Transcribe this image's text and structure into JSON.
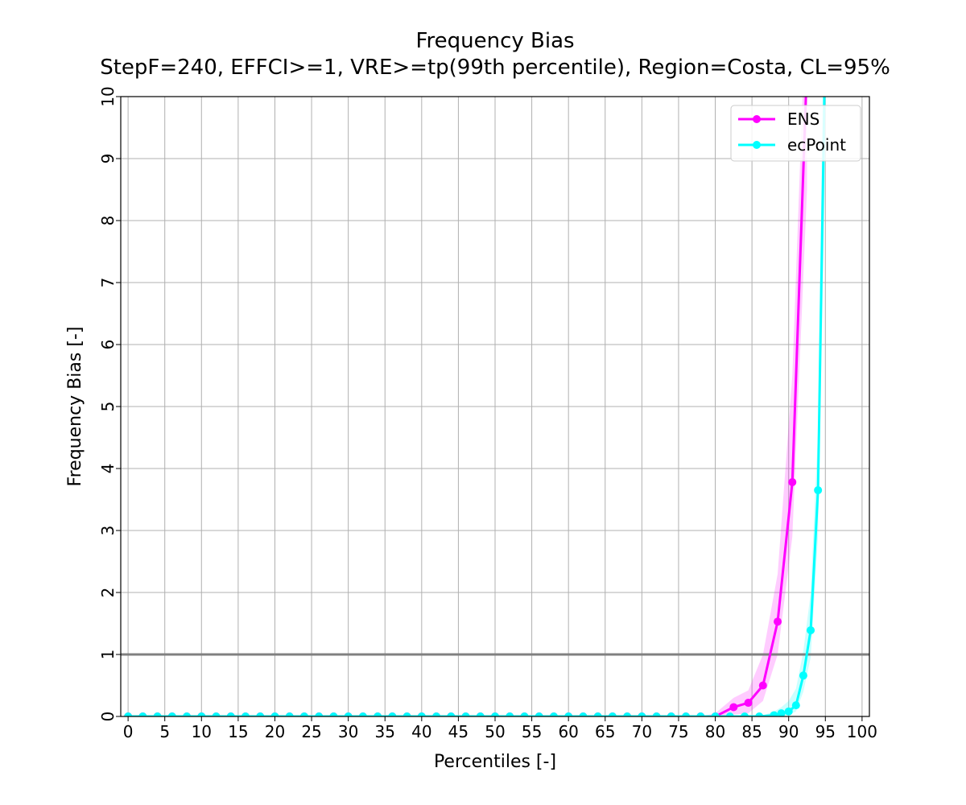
{
  "chart_data": {
    "type": "line",
    "title": "Frequency Bias",
    "subtitle": "StepF=240, EFFCI>=1, VRE>=tp(99th percentile), Region=Costa, CL=95%",
    "xlabel": "Percentiles [-]",
    "ylabel": "Frequency Bias [-]",
    "xlim": [
      -1,
      101
    ],
    "ylim": [
      0,
      10
    ],
    "xticks": [
      0,
      5,
      10,
      15,
      20,
      25,
      30,
      35,
      40,
      45,
      50,
      55,
      60,
      65,
      70,
      75,
      80,
      85,
      90,
      95,
      100
    ],
    "yticks": [
      0,
      1,
      2,
      3,
      4,
      5,
      6,
      7,
      8,
      9,
      10
    ],
    "grid": true,
    "legend_position": "top-right",
    "reference_line": {
      "y": 1,
      "color": "#808080"
    },
    "series": [
      {
        "name": "ENS",
        "color": "#ff00ff",
        "x": [
          0,
          2,
          4,
          6,
          8,
          10,
          12,
          14,
          16,
          18,
          20,
          22,
          24,
          26,
          28,
          30,
          32,
          34,
          36,
          38,
          40,
          42,
          44,
          46,
          48,
          50,
          52,
          54,
          56,
          58,
          60,
          62,
          64,
          66,
          68,
          70,
          72,
          74,
          76,
          78,
          80,
          82.5,
          84.5,
          86.5,
          88.5,
          90.5,
          92.5
        ],
        "y": [
          0,
          0,
          0,
          0,
          0,
          0,
          0,
          0,
          0,
          0,
          0,
          0,
          0,
          0,
          0,
          0,
          0,
          0,
          0,
          0,
          0,
          0,
          0,
          0,
          0,
          0,
          0,
          0,
          0,
          0,
          0,
          0,
          0,
          0,
          0,
          0,
          0,
          0,
          0,
          0,
          0,
          0.15,
          0.22,
          0.5,
          1.53,
          3.78,
          10.5
        ],
        "ci_low": [
          0,
          0,
          0,
          0,
          0,
          0,
          0,
          0,
          0,
          0,
          0,
          0,
          0,
          0,
          0,
          0,
          0,
          0,
          0,
          0,
          0,
          0,
          0,
          0,
          0,
          0,
          0,
          0,
          0,
          0,
          0,
          0,
          0,
          0,
          0,
          0,
          0,
          0,
          0,
          0,
          0,
          0.03,
          0.05,
          0.25,
          1.0,
          2.9,
          8.5
        ],
        "ci_high": [
          0,
          0,
          0,
          0,
          0,
          0,
          0,
          0,
          0,
          0,
          0,
          0,
          0,
          0,
          0,
          0,
          0,
          0,
          0,
          0,
          0,
          0,
          0,
          0,
          0,
          0,
          0,
          0,
          0,
          0,
          0,
          0,
          0,
          0,
          0,
          0,
          0,
          0,
          0,
          0,
          0.05,
          0.3,
          0.42,
          1.0,
          2.3,
          5.5,
          12
        ]
      },
      {
        "name": "ecPoint",
        "color": "#00ffff",
        "x": [
          0,
          2,
          4,
          6,
          8,
          10,
          12,
          14,
          16,
          18,
          20,
          22,
          24,
          26,
          28,
          30,
          32,
          34,
          36,
          38,
          40,
          42,
          44,
          46,
          48,
          50,
          52,
          54,
          56,
          58,
          60,
          62,
          64,
          66,
          68,
          70,
          72,
          74,
          76,
          78,
          80,
          82,
          84,
          86,
          88,
          89,
          90,
          91,
          92,
          93,
          94,
          95
        ],
        "y": [
          0,
          0,
          0,
          0,
          0,
          0,
          0,
          0,
          0,
          0,
          0,
          0,
          0,
          0,
          0,
          0,
          0,
          0,
          0,
          0,
          0,
          0,
          0,
          0,
          0,
          0,
          0,
          0,
          0,
          0,
          0,
          0,
          0,
          0,
          0,
          0,
          0,
          0,
          0,
          0,
          0,
          0,
          0,
          0,
          0.02,
          0.05,
          0.08,
          0.18,
          0.66,
          1.39,
          3.65,
          11
        ],
        "ci_low": [
          0,
          0,
          0,
          0,
          0,
          0,
          0,
          0,
          0,
          0,
          0,
          0,
          0,
          0,
          0,
          0,
          0,
          0,
          0,
          0,
          0,
          0,
          0,
          0,
          0,
          0,
          0,
          0,
          0,
          0,
          0,
          0,
          0,
          0,
          0,
          0,
          0,
          0,
          0,
          0,
          0,
          0,
          0,
          0,
          0,
          0.01,
          0.03,
          0.08,
          0.4,
          0.95,
          2.9,
          9
        ],
        "ci_high": [
          0,
          0,
          0,
          0,
          0,
          0,
          0,
          0,
          0,
          0,
          0,
          0,
          0,
          0,
          0,
          0,
          0,
          0,
          0,
          0,
          0,
          0,
          0,
          0,
          0,
          0,
          0,
          0,
          0,
          0,
          0,
          0,
          0,
          0,
          0,
          0,
          0,
          0,
          0,
          0,
          0,
          0,
          0,
          0,
          0.08,
          0.15,
          0.25,
          0.45,
          1.05,
          2.0,
          4.6,
          13
        ]
      }
    ]
  }
}
